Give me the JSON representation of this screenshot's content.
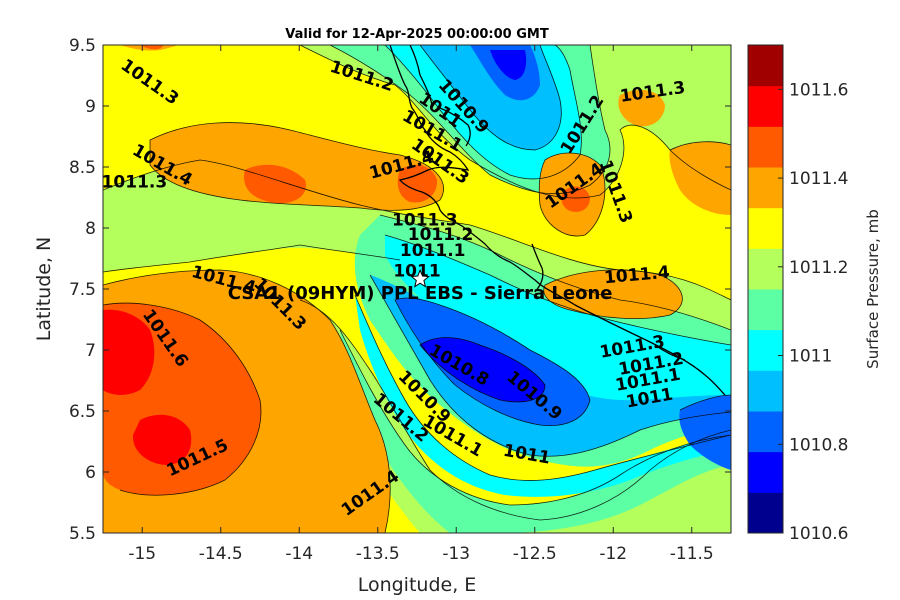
{
  "title": "Valid for 12-Apr-2025 00:00:00 GMT",
  "x_axis": {
    "label": "Longitude, E",
    "range": [
      -15.25,
      -11.25
    ],
    "ticks": [
      "-15",
      "-14.5",
      "-14",
      "-13.5",
      "-13",
      "-12.5",
      "-12",
      "-11.5"
    ]
  },
  "y_axis": {
    "label": "Latitude, N",
    "range": [
      5.5,
      9.5
    ],
    "ticks": [
      "5.5",
      "6",
      "6.5",
      "7",
      "7.5",
      "8",
      "8.5",
      "9",
      "9.5"
    ]
  },
  "colorbar": {
    "title": "Surface Pressure, mb",
    "ticks": [
      "1010.6",
      "1010.8",
      "1011",
      "1011.2",
      "1011.4",
      "1011.6"
    ],
    "levels": [
      "#00008f",
      "#0000ff",
      "#0063ff",
      "#00bfff",
      "#00ffff",
      "#5cffa3",
      "#b4ff5c",
      "#ffff00",
      "#ffa500",
      "#ff5a00",
      "#ff0000",
      "#a00000"
    ]
  },
  "station": {
    "name": "CSA1 (09HYM) PPL EBS  - Sierra Leone",
    "lon": -13.23,
    "lat": 7.58
  },
  "contour_labels": [
    {
      "text": "1011.3",
      "lon": -14.95,
      "lat": 9.2,
      "rot": 35
    },
    {
      "text": "1011.2",
      "lon": -13.6,
      "lat": 9.25,
      "rot": 18
    },
    {
      "text": "1010.9",
      "lon": -12.95,
      "lat": 9.0,
      "rot": 48
    },
    {
      "text": "1011",
      "lon": -13.1,
      "lat": 8.97,
      "rot": 35
    },
    {
      "text": "1011.1",
      "lon": -13.15,
      "lat": 8.8,
      "rot": 30
    },
    {
      "text": "1011.3",
      "lon": -13.1,
      "lat": 8.55,
      "rot": 35
    },
    {
      "text": "1011.4",
      "lon": -13.35,
      "lat": 8.52,
      "rot": -15
    },
    {
      "text": "1011.2",
      "lon": -12.2,
      "lat": 8.85,
      "rot": -58
    },
    {
      "text": "1011.3",
      "lon": -11.75,
      "lat": 9.12,
      "rot": -8
    },
    {
      "text": "1011.4",
      "lon": -12.25,
      "lat": 8.35,
      "rot": -35
    },
    {
      "text": "1011.3",
      "lon": -11.98,
      "lat": 8.3,
      "rot": 70
    },
    {
      "text": "1011.4",
      "lon": -14.87,
      "lat": 8.52,
      "rot": 30
    },
    {
      "text": "1011.3",
      "lon": -15.05,
      "lat": 8.38,
      "rot": 0
    },
    {
      "text": "1011.3",
      "lon": -13.2,
      "lat": 8.07,
      "rot": 0
    },
    {
      "text": "1011.2",
      "lon": -13.1,
      "lat": 7.95,
      "rot": 0
    },
    {
      "text": "1011.1",
      "lon": -13.15,
      "lat": 7.82,
      "rot": 0
    },
    {
      "text": "1011",
      "lon": -13.25,
      "lat": 7.65,
      "rot": 0
    },
    {
      "text": "1011.4",
      "lon": -14.48,
      "lat": 7.58,
      "rot": 15
    },
    {
      "text": "1011.3",
      "lon": -14.12,
      "lat": 7.38,
      "rot": 45
    },
    {
      "text": "1011.6",
      "lon": -14.85,
      "lat": 7.1,
      "rot": 55
    },
    {
      "text": "1011.5",
      "lon": -14.65,
      "lat": 6.12,
      "rot": -25
    },
    {
      "text": "1011.4",
      "lon": -13.55,
      "lat": 5.83,
      "rot": -35
    },
    {
      "text": "1010.8",
      "lon": -12.98,
      "lat": 6.88,
      "rot": 30
    },
    {
      "text": "1010.9",
      "lon": -13.2,
      "lat": 6.62,
      "rot": 45
    },
    {
      "text": "1010.9",
      "lon": -12.5,
      "lat": 6.63,
      "rot": 40
    },
    {
      "text": "1011.2",
      "lon": -13.35,
      "lat": 6.45,
      "rot": 40
    },
    {
      "text": "1011.1",
      "lon": -13.02,
      "lat": 6.3,
      "rot": 30
    },
    {
      "text": "1011",
      "lon": -12.55,
      "lat": 6.15,
      "rot": 10
    },
    {
      "text": "1011.3",
      "lon": -11.88,
      "lat": 7.03,
      "rot": -10
    },
    {
      "text": "1011.2",
      "lon": -11.76,
      "lat": 6.89,
      "rot": -10
    },
    {
      "text": "1011.1",
      "lon": -11.78,
      "lat": 6.76,
      "rot": -10
    },
    {
      "text": "1011",
      "lon": -11.77,
      "lat": 6.61,
      "rot": -10
    },
    {
      "text": "1011.4",
      "lon": -11.85,
      "lat": 7.62,
      "rot": -5
    }
  ]
}
